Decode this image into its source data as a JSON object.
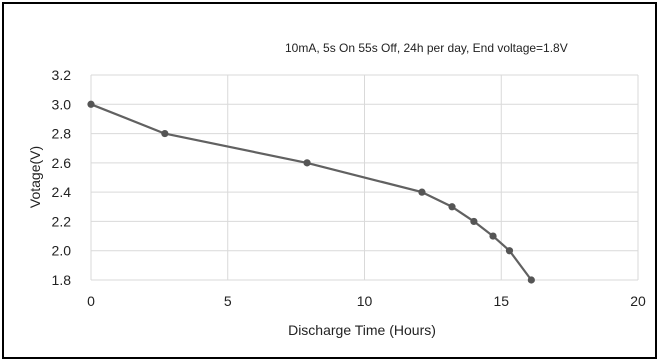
{
  "chart_data": {
    "type": "line",
    "subtitle": "10mA, 5s On 55s Off, 24h per day, End voltage=1.8V",
    "xlabel": "Discharge Time (Hours)",
    "ylabel": "Votage(V)",
    "xlim": [
      0,
      20
    ],
    "ylim": [
      1.8,
      3.2
    ],
    "x_ticks": [
      "0",
      "5",
      "10",
      "15",
      "20"
    ],
    "y_ticks": [
      "3.2",
      "3.0",
      "2.8",
      "2.6",
      "2.4",
      "2.2",
      "2.0",
      "1.8"
    ],
    "grid": true,
    "legend": "none",
    "series": [
      {
        "x": [
          0,
          2.7,
          7.9,
          12.1,
          13.2,
          14.0,
          14.7,
          15.3,
          16.1
        ],
        "y": [
          3.0,
          2.8,
          2.6,
          2.4,
          2.3,
          2.2,
          2.1,
          2.0,
          1.8
        ],
        "color": "#616161"
      }
    ],
    "colors": {
      "line": "#616161",
      "marker": "#555555",
      "grid": "#d9d9d9",
      "frame": "#000000"
    }
  }
}
